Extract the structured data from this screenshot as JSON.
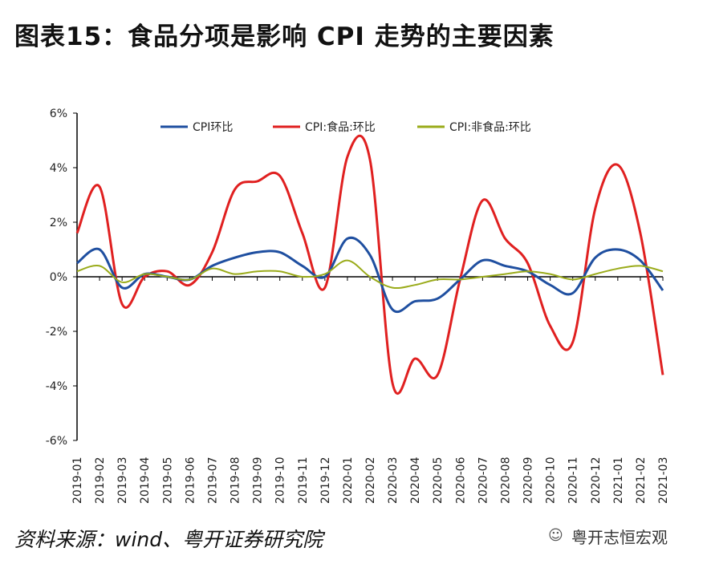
{
  "title": "图表15：食品分项是影响 CPI 走势的主要因素",
  "source": "资料来源：wind、粤开证券研究院",
  "watermark": "粤开志恒宏观",
  "chart_data": {
    "type": "line",
    "title": "图表15：食品分项是影响 CPI 走势的主要因素",
    "xlabel": "",
    "ylabel": "",
    "ylim": [
      -6,
      6
    ],
    "yticks": [
      6,
      4,
      2,
      0,
      -2,
      -4,
      -6
    ],
    "ytick_labels": [
      "6%",
      "4%",
      "2%",
      "0%",
      "-2%",
      "-4%",
      "-6%"
    ],
    "legend_position": "top",
    "categories": [
      "2019-01",
      "2019-02",
      "2019-03",
      "2019-04",
      "2019-05",
      "2019-06",
      "2019-07",
      "2019-08",
      "2019-09",
      "2019-10",
      "2019-11",
      "2019-12",
      "2020-01",
      "2020-02",
      "2020-03",
      "2020-04",
      "2020-05",
      "2020-06",
      "2020-07",
      "2020-08",
      "2020-09",
      "2020-10",
      "2020-11",
      "2020-12",
      "2021-01",
      "2021-02",
      "2021-03"
    ],
    "series": [
      {
        "name": "CPI环比",
        "color": "#1f4fa0",
        "values": [
          0.5,
          1.0,
          -0.4,
          0.1,
          0.0,
          -0.1,
          0.4,
          0.7,
          0.9,
          0.9,
          0.4,
          0.0,
          1.4,
          0.8,
          -1.2,
          -0.9,
          -0.8,
          -0.1,
          0.6,
          0.4,
          0.2,
          -0.3,
          -0.6,
          0.7,
          1.0,
          0.6,
          -0.5
        ]
      },
      {
        "name": "CPI:食品:环比",
        "color": "#e02020",
        "values": [
          1.6,
          3.3,
          -1.0,
          0.0,
          0.2,
          -0.3,
          0.9,
          3.2,
          3.5,
          3.7,
          1.6,
          -0.4,
          4.4,
          4.3,
          -3.9,
          -3.0,
          -3.6,
          -0.1,
          2.8,
          1.4,
          0.5,
          -1.8,
          -2.4,
          2.5,
          4.1,
          1.6,
          -3.6
        ]
      },
      {
        "name": "CPI:非食品:环比",
        "color": "#9aab1a",
        "values": [
          0.2,
          0.4,
          -0.2,
          0.1,
          0.0,
          -0.1,
          0.3,
          0.1,
          0.2,
          0.2,
          0.0,
          0.1,
          0.6,
          0.0,
          -0.4,
          -0.3,
          -0.1,
          -0.1,
          0.0,
          0.1,
          0.2,
          0.1,
          -0.1,
          0.1,
          0.3,
          0.4,
          0.2
        ]
      }
    ]
  }
}
